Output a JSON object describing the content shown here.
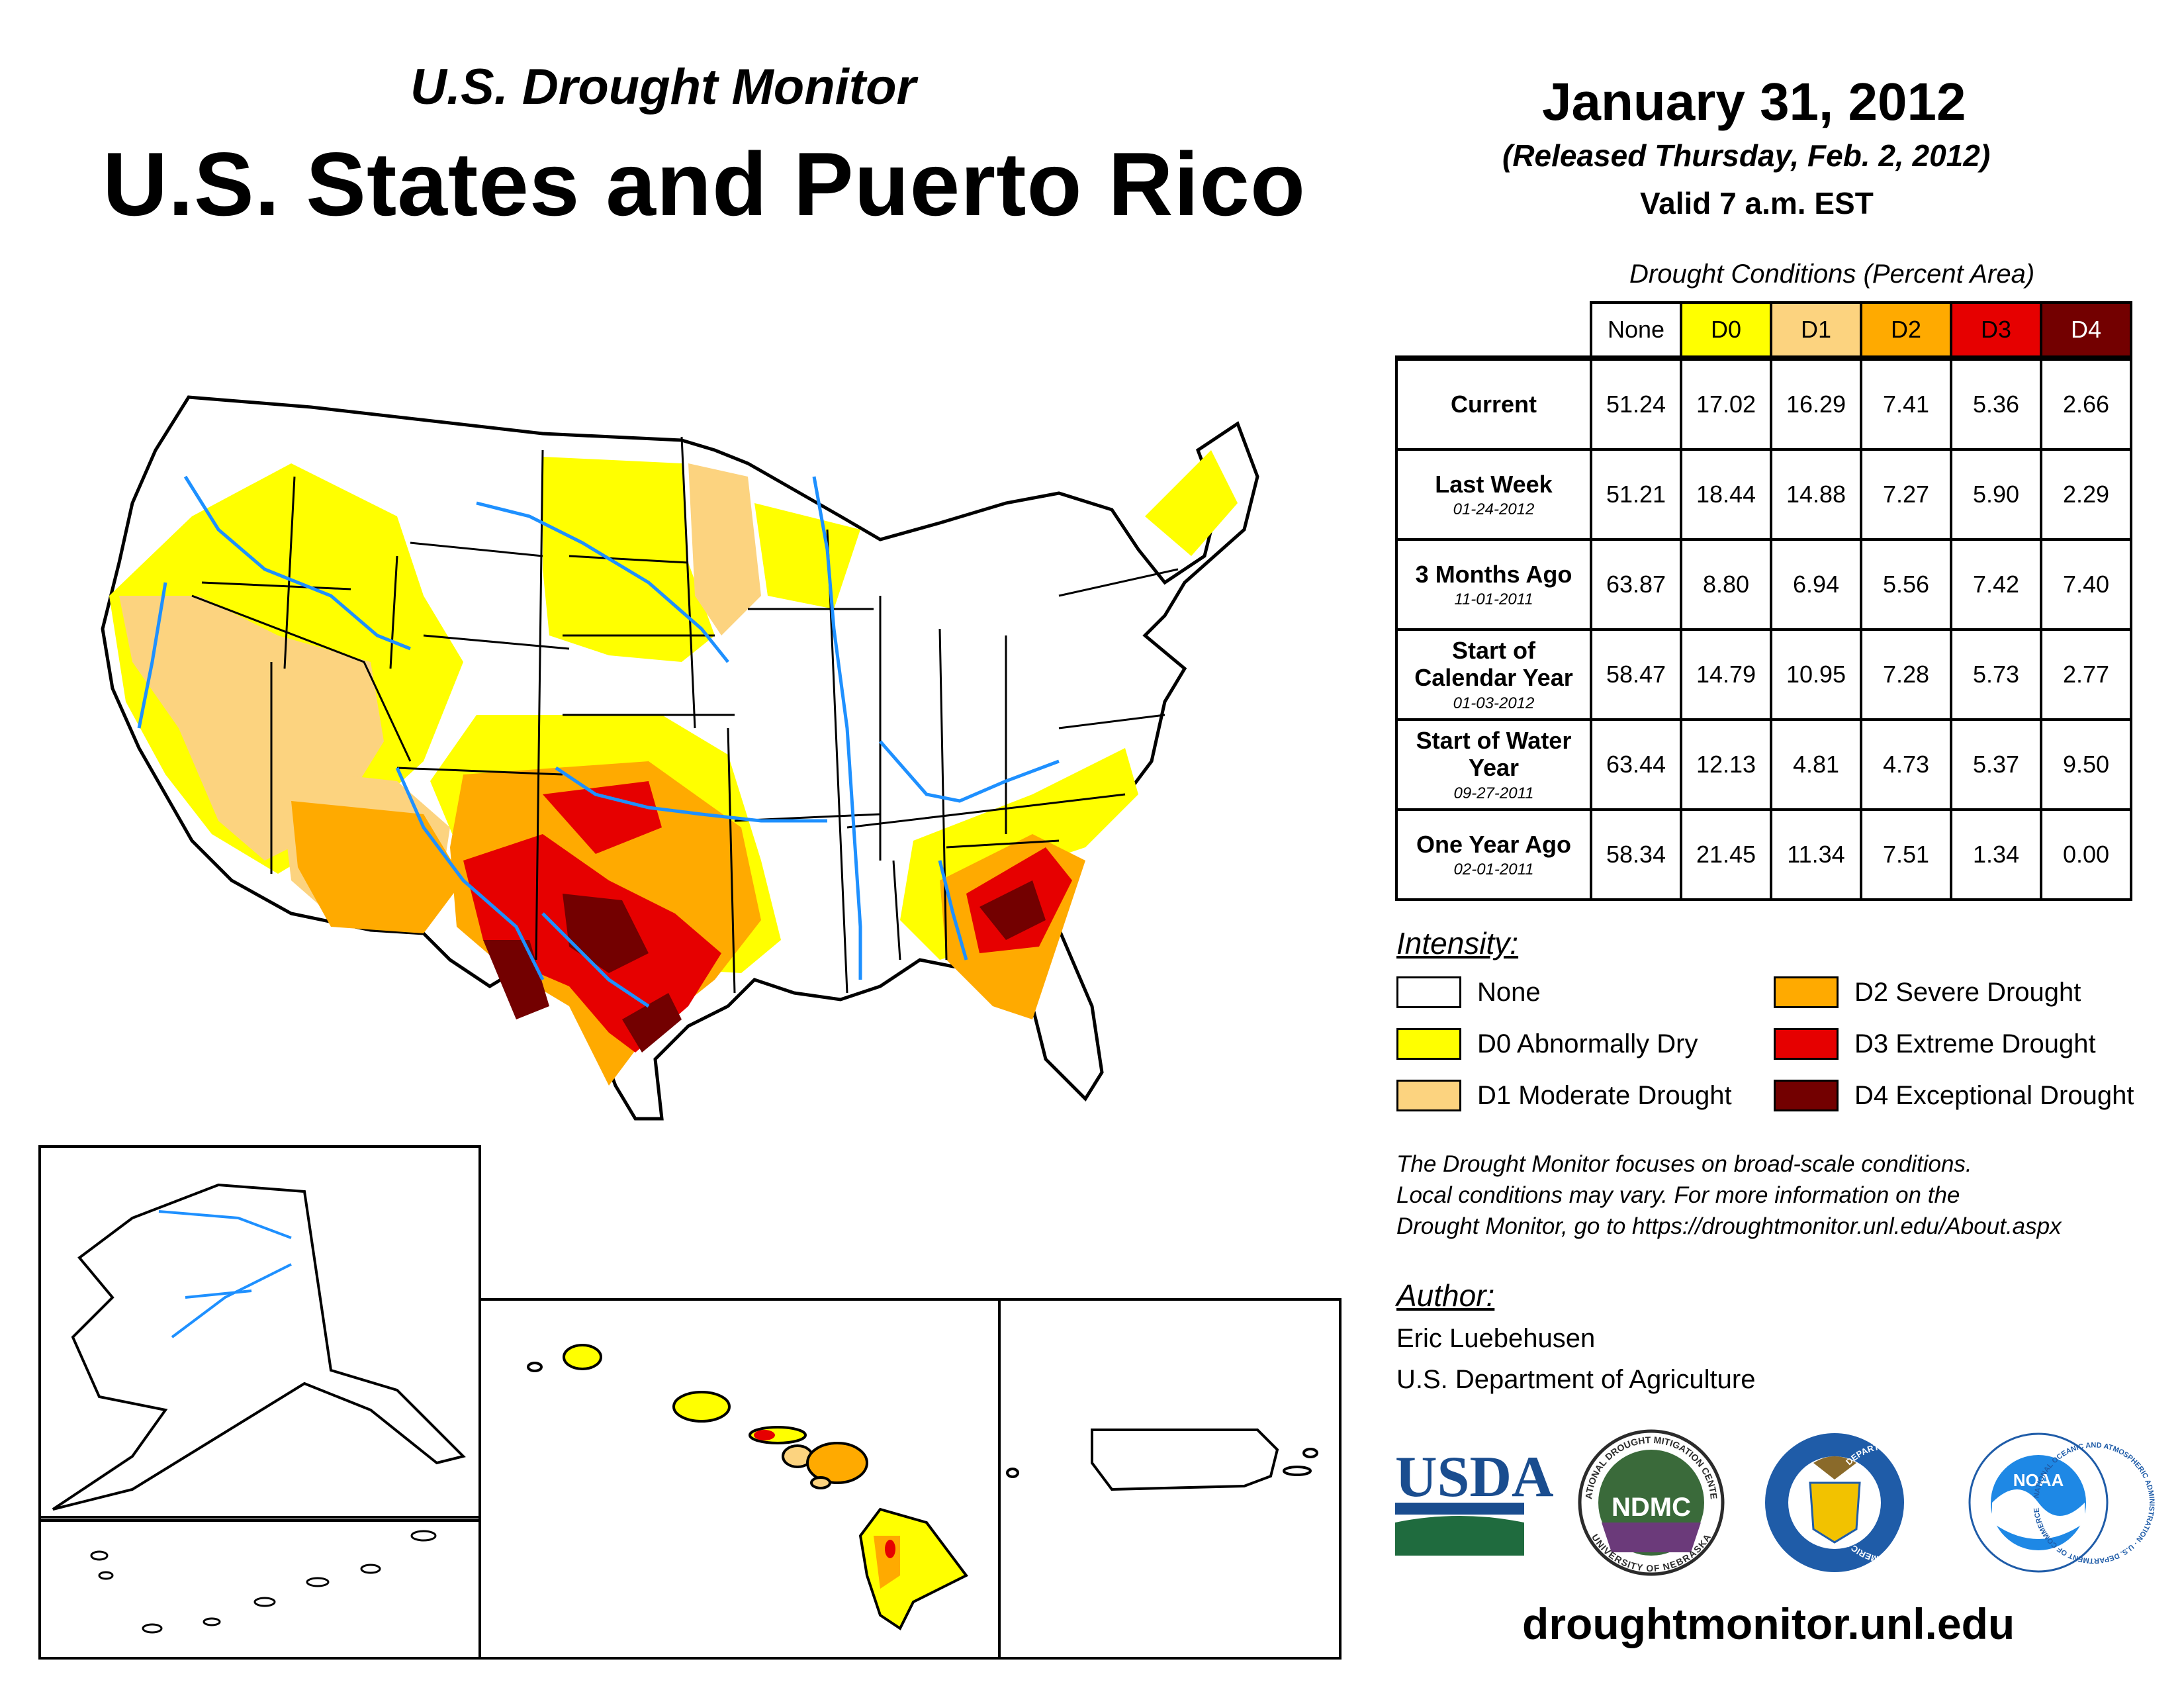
{
  "header": {
    "subtitle": "U.S. Drought Monitor",
    "title": "U.S. States and Puerto Rico",
    "date": "January 31, 2012",
    "released": "(Released Thursday, Feb. 2, 2012)",
    "valid": "Valid 7 a.m. EST"
  },
  "table": {
    "caption": "Drought Conditions (Percent Area)",
    "columns": [
      "None",
      "D0",
      "D1",
      "D2",
      "D3",
      "D4"
    ],
    "column_colors": [
      "#ffffff",
      "#ffff00",
      "#fcd37f",
      "#ffaa00",
      "#e60000",
      "#730000"
    ],
    "rows": [
      {
        "label": "Current",
        "date": "",
        "values": [
          "51.24",
          "17.02",
          "16.29",
          "7.41",
          "5.36",
          "2.66"
        ]
      },
      {
        "label": "Last Week",
        "date": "01-24-2012",
        "values": [
          "51.21",
          "18.44",
          "14.88",
          "7.27",
          "5.90",
          "2.29"
        ]
      },
      {
        "label": "3 Months Ago",
        "date": "11-01-2011",
        "values": [
          "63.87",
          "8.80",
          "6.94",
          "5.56",
          "7.42",
          "7.40"
        ]
      },
      {
        "label": "Start of Calendar Year",
        "date": "01-03-2012",
        "values": [
          "58.47",
          "14.79",
          "10.95",
          "7.28",
          "5.73",
          "2.77"
        ]
      },
      {
        "label": "Start of Water Year",
        "date": "09-27-2011",
        "values": [
          "63.44",
          "12.13",
          "4.81",
          "4.73",
          "5.37",
          "9.50"
        ]
      },
      {
        "label": "One Year Ago",
        "date": "02-01-2011",
        "values": [
          "58.34",
          "21.45",
          "11.34",
          "7.51",
          "1.34",
          "0.00"
        ]
      }
    ]
  },
  "legend": {
    "title": "Intensity:",
    "items": [
      {
        "label": "None",
        "color": "#ffffff"
      },
      {
        "label": "D0 Abnormally Dry",
        "color": "#ffff00"
      },
      {
        "label": "D1 Moderate Drought",
        "color": "#fcd37f"
      },
      {
        "label": "D2 Severe Drought",
        "color": "#ffaa00"
      },
      {
        "label": "D3 Extreme Drought",
        "color": "#e60000"
      },
      {
        "label": "D4 Exceptional Drought",
        "color": "#730000"
      }
    ]
  },
  "note": {
    "line1": "The Drought Monitor focuses on broad-scale conditions.",
    "line2": "Local conditions may vary. For more information on the",
    "line3": "Drought Monitor, go to https://droughtmonitor.unl.edu/About.aspx"
  },
  "author": {
    "heading": "Author:",
    "name": "Eric Luebehusen",
    "org": "U.S. Department of Agriculture"
  },
  "logos": {
    "usda": "USDA",
    "ndmc": "NDMC",
    "ndmc_ring_top": "NATIONAL DROUGHT MITIGATION CENTER",
    "ndmc_ring_bottom": "UNIVERSITY OF NEBRASKA",
    "doc_ring": "DEPARTMENT OF COMMERCE · UNITED STATES OF AMERICA",
    "noaa": "NOAA",
    "noaa_ring": "NATIONAL OCEANIC AND ATMOSPHERIC ADMINISTRATION · U.S. DEPARTMENT OF COMMERCE"
  },
  "website": "droughtmonitor.unl.edu"
}
